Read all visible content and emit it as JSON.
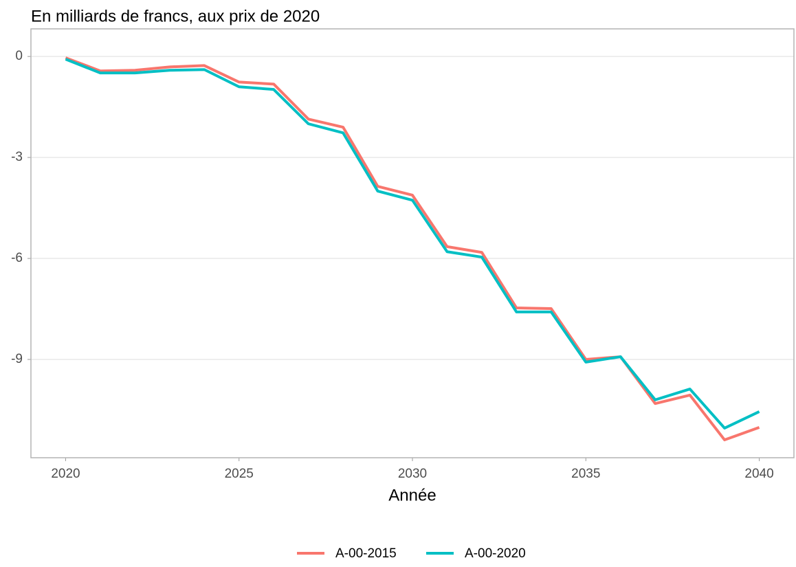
{
  "chart_data": {
    "type": "line",
    "title": "En milliards de francs, aux prix de 2020",
    "x_label": "Année",
    "x": [
      2020,
      2021,
      2022,
      2023,
      2024,
      2025,
      2026,
      2027,
      2028,
      2029,
      2030,
      2031,
      2032,
      2033,
      2034,
      2035,
      2036,
      2037,
      2038,
      2039,
      2040
    ],
    "series": [
      {
        "name": "A-00-2015",
        "color": "#f8766d",
        "values": [
          -0.04,
          -0.43,
          -0.41,
          -0.31,
          -0.27,
          -0.76,
          -0.82,
          -1.86,
          -2.1,
          -3.86,
          -4.12,
          -5.65,
          -5.82,
          -7.47,
          -7.49,
          -9.0,
          -8.92,
          -10.31,
          -10.06,
          -11.39,
          -11.02
        ]
      },
      {
        "name": "A-00-2020",
        "color": "#00bfc4",
        "values": [
          -0.08,
          -0.49,
          -0.49,
          -0.41,
          -0.39,
          -0.9,
          -0.98,
          -2.0,
          -2.27,
          -4.0,
          -4.27,
          -5.8,
          -5.96,
          -7.59,
          -7.59,
          -9.08,
          -8.92,
          -10.2,
          -9.88,
          -11.04,
          -10.55
        ]
      }
    ],
    "xlim": [
      2019,
      2041
    ],
    "xticks": [
      2020,
      2025,
      2030,
      2035,
      2040
    ],
    "ylim": [
      -11.92,
      0.82
    ],
    "yticks": [
      -9,
      -6,
      -3,
      0
    ],
    "grid": true,
    "legend": "bottom"
  }
}
